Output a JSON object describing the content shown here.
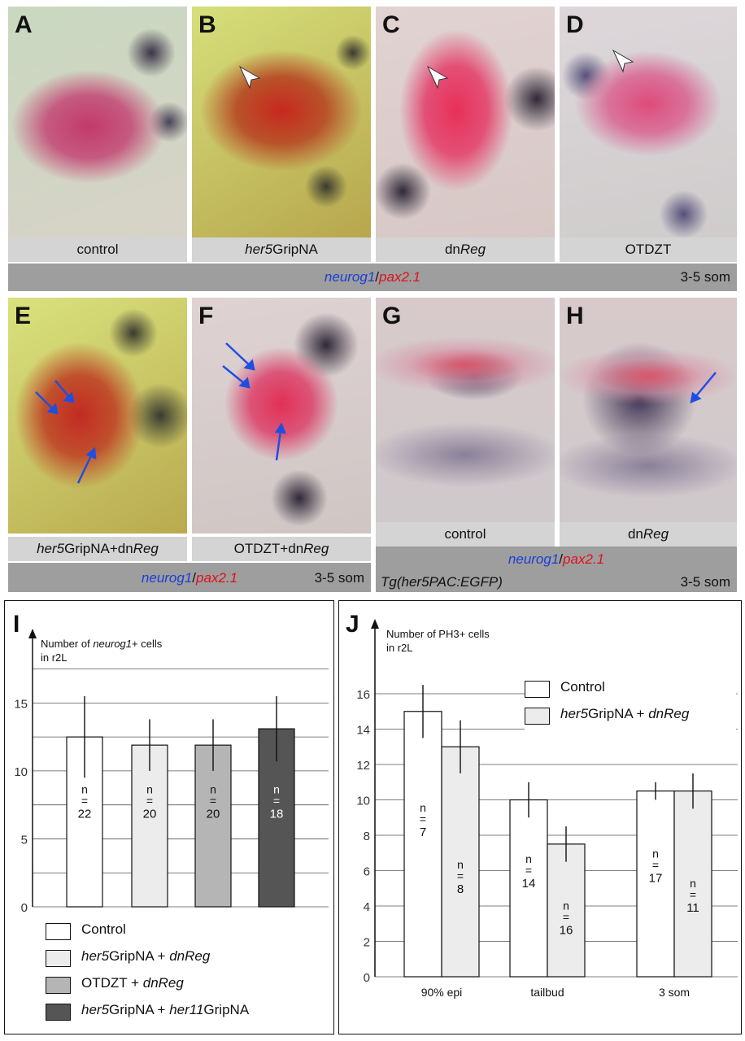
{
  "panels_top": [
    {
      "letter": "A",
      "caption_parts": [
        {
          "text": "control",
          "italic": false
        }
      ]
    },
    {
      "letter": "B",
      "caption_parts": [
        {
          "text": "her5",
          "italic": true
        },
        {
          "text": "GripNA",
          "italic": false
        }
      ]
    },
    {
      "letter": "C",
      "caption_parts": [
        {
          "text": "dn",
          "italic": false
        },
        {
          "text": "Reg",
          "italic": true
        }
      ]
    },
    {
      "letter": "D",
      "caption_parts": [
        {
          "text": "OTDZT",
          "italic": false
        }
      ]
    }
  ],
  "band_top": {
    "marker_green": "neurog1",
    "sep": "/",
    "marker_red": "pax2.1",
    "stage": "3-5 som"
  },
  "panels_mid": [
    {
      "letter": "E",
      "caption_parts": [
        {
          "text": "her5",
          "italic": true
        },
        {
          "text": "GripNA+dn",
          "italic": false
        },
        {
          "text": "Reg",
          "italic": true
        }
      ]
    },
    {
      "letter": "F",
      "caption_parts": [
        {
          "text": "OTDZT+dn",
          "italic": false
        },
        {
          "text": "Reg",
          "italic": true
        }
      ]
    },
    {
      "letter": "G",
      "caption_parts": [
        {
          "text": "control",
          "italic": false
        }
      ]
    },
    {
      "letter": "H",
      "caption_parts": [
        {
          "text": "dn",
          "italic": false
        },
        {
          "text": "Reg",
          "italic": true
        }
      ]
    }
  ],
  "band_mid_left": {
    "marker_green": "neurog1",
    "sep": "/",
    "marker_red": "pax2.1",
    "stage": "3-5 som"
  },
  "band_mid_right": {
    "transgene": "Tg(her5PAC:EGFP)",
    "marker_green": "neurog1",
    "sep": "/",
    "marker_red": "pax2.1",
    "stage": "3-5 som"
  },
  "colors": {
    "marker_blue": "#1a3fd6",
    "marker_red": "#e0101a",
    "band": "#9e9e9e",
    "caption": "#d4d4d4"
  },
  "chart_data": [
    {
      "panel": "I",
      "type": "bar",
      "ylabel_line1_prefix": "Number of ",
      "ylabel_line1_gene": "neurog1",
      "ylabel_line1_suffix": "+ cells",
      "ylabel_line2": "in r2L",
      "ylim": [
        0,
        18
      ],
      "yticks": [
        0,
        5,
        10,
        15
      ],
      "grid": true,
      "series": [
        {
          "name": "Control",
          "value": 12.5,
          "err": 3.0,
          "n": "22",
          "color": "#ffffff",
          "label_color": "#111111"
        },
        {
          "name": "her5GripNA + dnReg",
          "value": 11.9,
          "err": 1.9,
          "n": "20",
          "color": "#ececec",
          "label_color": "#111111"
        },
        {
          "name": "OTDZT + dnReg",
          "value": 11.9,
          "err": 1.9,
          "n": "20",
          "color": "#b5b5b5",
          "label_color": "#111111"
        },
        {
          "name": "her5GripNA + her11GripNA",
          "value": 13.1,
          "err": 2.4,
          "n": "18",
          "color": "#555555",
          "label_color": "#ffffff"
        }
      ],
      "legend": [
        {
          "parts": [
            {
              "t": "Control",
              "i": false
            }
          ],
          "color": "#ffffff"
        },
        {
          "parts": [
            {
              "t": "her5",
              "i": true
            },
            {
              "t": "GripNA + ",
              "i": false
            },
            {
              "t": "dnReg",
              "i": true
            }
          ],
          "color": "#ececec"
        },
        {
          "parts": [
            {
              "t": "OTDZT + ",
              "i": false
            },
            {
              "t": "dnReg",
              "i": true
            }
          ],
          "color": "#b5b5b5"
        },
        {
          "parts": [
            {
              "t": "her5",
              "i": true
            },
            {
              "t": "GripNA + ",
              "i": false
            },
            {
              "t": "her11",
              "i": true
            },
            {
              "t": "GripNA",
              "i": false
            }
          ],
          "color": "#555555"
        }
      ]
    },
    {
      "panel": "J",
      "type": "bar",
      "ylabel_line1": "Number of PH3+  cells",
      "ylabel_line2": "in r2L",
      "ylim": [
        0,
        18
      ],
      "yticks": [
        0,
        2,
        4,
        6,
        8,
        10,
        12,
        14,
        16
      ],
      "grid": true,
      "categories": [
        "90% epi",
        "tailbud",
        "3 som"
      ],
      "series": [
        {
          "name": "Control",
          "color": "#ffffff",
          "values": [
            15.0,
            10.0,
            10.5
          ],
          "errs": [
            1.5,
            1.0,
            0.5
          ],
          "n": [
            "7",
            "14",
            "17"
          ]
        },
        {
          "name": "her5GripNA + dnReg",
          "color": "#ececec",
          "values": [
            13.0,
            7.5,
            10.5
          ],
          "errs": [
            1.5,
            1.0,
            1.0
          ],
          "n": [
            "8",
            "16",
            "11"
          ]
        }
      ],
      "legend": [
        {
          "parts": [
            {
              "t": "Control",
              "i": false
            }
          ],
          "color": "#ffffff"
        },
        {
          "parts": [
            {
              "t": "her5",
              "i": true
            },
            {
              "t": "GripNA + ",
              "i": false
            },
            {
              "t": "dnReg",
              "i": true
            }
          ],
          "color": "#ececec"
        }
      ]
    }
  ]
}
